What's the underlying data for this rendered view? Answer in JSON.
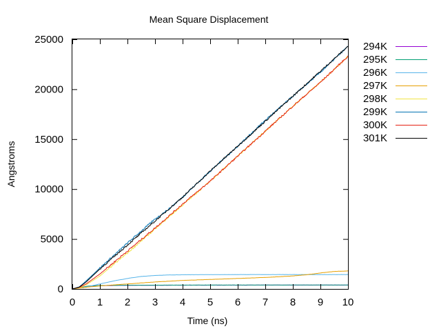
{
  "chart_data": {
    "type": "line",
    "title": "Mean Square Displacement",
    "xlabel": "Time (ns)",
    "ylabel": "Angstroms",
    "xlim": [
      0,
      10
    ],
    "ylim": [
      0,
      25000
    ],
    "xticks": [
      0,
      1,
      2,
      3,
      4,
      5,
      6,
      7,
      8,
      9,
      10
    ],
    "yticks": [
      0,
      5000,
      10000,
      15000,
      20000,
      25000
    ],
    "grid": false,
    "legend_position": "right-outside",
    "series": [
      {
        "name": "294K",
        "color": "#9400d3",
        "points": [
          [
            0,
            0
          ],
          [
            0.3,
            150
          ],
          [
            0.6,
            280
          ],
          [
            1,
            330
          ],
          [
            2,
            360
          ],
          [
            3,
            370
          ],
          [
            4,
            375
          ],
          [
            5,
            380
          ],
          [
            6,
            380
          ],
          [
            7,
            385
          ],
          [
            8,
            385
          ],
          [
            9,
            385
          ],
          [
            10,
            385
          ]
        ]
      },
      {
        "name": "295K",
        "color": "#009e73",
        "points": [
          [
            0,
            0
          ],
          [
            0.3,
            150
          ],
          [
            0.6,
            300
          ],
          [
            1,
            340
          ],
          [
            2,
            370
          ],
          [
            3,
            380
          ],
          [
            4,
            385
          ],
          [
            5,
            390
          ],
          [
            6,
            390
          ],
          [
            7,
            392
          ],
          [
            8,
            392
          ],
          [
            9,
            395
          ],
          [
            10,
            395
          ]
        ]
      },
      {
        "name": "296K",
        "color": "#56b4e9",
        "points": [
          [
            0,
            0
          ],
          [
            0.3,
            120
          ],
          [
            0.6,
            250
          ],
          [
            1,
            500
          ],
          [
            1.5,
            800
          ],
          [
            2,
            1050
          ],
          [
            2.5,
            1250
          ],
          [
            3,
            1350
          ],
          [
            3.5,
            1400
          ],
          [
            4,
            1420
          ],
          [
            5,
            1430
          ],
          [
            6,
            1440
          ],
          [
            7,
            1440
          ],
          [
            8,
            1440
          ],
          [
            9,
            1440
          ],
          [
            10,
            1440
          ]
        ]
      },
      {
        "name": "297K",
        "color": "#e69f00",
        "points": [
          [
            0,
            0
          ],
          [
            0.3,
            100
          ],
          [
            0.6,
            200
          ],
          [
            1,
            300
          ],
          [
            2,
            500
          ],
          [
            3,
            700
          ],
          [
            4,
            850
          ],
          [
            5,
            950
          ],
          [
            6,
            1050
          ],
          [
            7,
            1150
          ],
          [
            8,
            1300
          ],
          [
            8.5,
            1420
          ],
          [
            9,
            1600
          ],
          [
            9.5,
            1750
          ],
          [
            10,
            1800
          ]
        ]
      },
      {
        "name": "298K",
        "color": "#f0e442",
        "points": [
          [
            0,
            0
          ],
          [
            0.25,
            100
          ],
          [
            0.5,
            400
          ],
          [
            1,
            1300
          ],
          [
            2,
            3600
          ],
          [
            3,
            6000
          ],
          [
            4,
            8400
          ],
          [
            5,
            10800
          ],
          [
            6,
            13300
          ],
          [
            7,
            15800
          ],
          [
            8,
            18300
          ],
          [
            9,
            20700
          ],
          [
            10,
            23300
          ]
        ]
      },
      {
        "name": "299K",
        "color": "#0072b2",
        "points": [
          [
            0,
            0
          ],
          [
            0.25,
            200
          ],
          [
            0.5,
            800
          ],
          [
            1,
            2100
          ],
          [
            2,
            4600
          ],
          [
            3,
            7000
          ],
          [
            3.5,
            8000
          ],
          [
            4,
            9200
          ],
          [
            5,
            11800
          ],
          [
            6,
            14300
          ],
          [
            7,
            16900
          ],
          [
            8,
            19300
          ],
          [
            9,
            21700
          ],
          [
            10,
            24300
          ]
        ]
      },
      {
        "name": "300K",
        "color": "#e51e10",
        "points": [
          [
            0,
            0
          ],
          [
            0.25,
            150
          ],
          [
            0.5,
            500
          ],
          [
            1,
            1500
          ],
          [
            2,
            3800
          ],
          [
            3,
            6100
          ],
          [
            4,
            8500
          ],
          [
            5,
            10800
          ],
          [
            6,
            13300
          ],
          [
            7,
            15800
          ],
          [
            8,
            18300
          ],
          [
            9,
            20700
          ],
          [
            10,
            23300
          ]
        ]
      },
      {
        "name": "301K",
        "color": "#000000",
        "points": [
          [
            0,
            0
          ],
          [
            0.25,
            180
          ],
          [
            0.5,
            700
          ],
          [
            1,
            2000
          ],
          [
            2,
            4400
          ],
          [
            3,
            6800
          ],
          [
            4,
            9200
          ],
          [
            5,
            11800
          ],
          [
            6,
            14300
          ],
          [
            7,
            16800
          ],
          [
            8,
            19300
          ],
          [
            9,
            21800
          ],
          [
            10,
            24300
          ]
        ]
      }
    ]
  }
}
